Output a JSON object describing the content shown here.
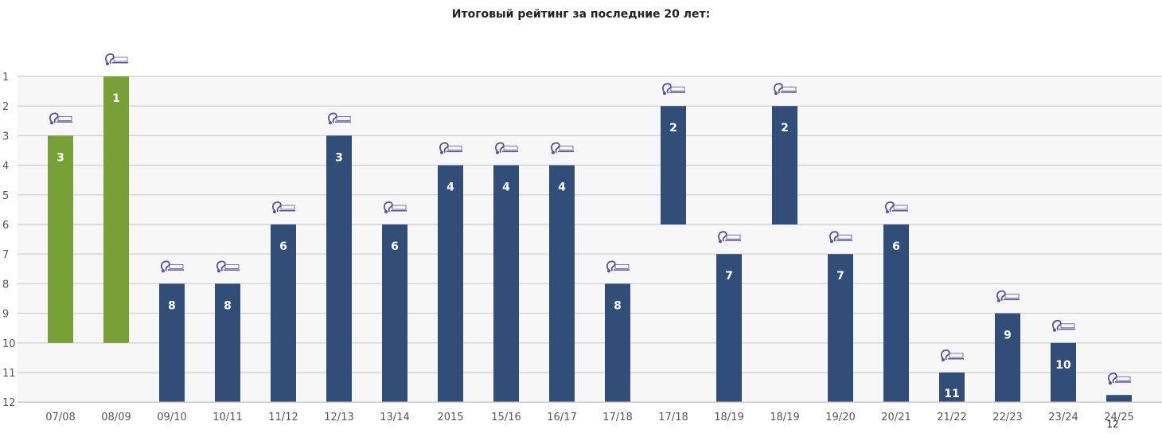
{
  "chart_data": {
    "type": "bar",
    "title": "Итоговый рейтинг за последние 20 лет:",
    "xlabel": "",
    "ylabel": "",
    "ylim": [
      1,
      12
    ],
    "y_inverted": true,
    "y_ticks": [
      "1",
      "2",
      "3",
      "4",
      "5",
      "6",
      "7",
      "8",
      "9",
      "10",
      "11",
      "12"
    ],
    "grid": true,
    "logo_icon": "pinch-logo-icon",
    "colors": {
      "bronze_highlight": "#77a136",
      "default": "#304e78",
      "logo": "#5a4fa0"
    },
    "categories": [
      "07/08",
      "08/09",
      "09/10",
      "10/11",
      "11/12",
      "12/13",
      "13/14",
      "2015",
      "15/16",
      "16/17",
      "17/18",
      "17/18",
      "18/19",
      "18/19",
      "19/20",
      "20/21",
      "21/22",
      "22/23",
      "23/24",
      "24/25"
    ],
    "values": [
      3,
      1,
      8,
      8,
      6,
      3,
      6,
      4,
      4,
      4,
      8,
      2,
      7,
      2,
      7,
      6,
      11,
      9,
      10,
      12
    ],
    "bar_bottoms": [
      10,
      10,
      12,
      12,
      12,
      12,
      12,
      12,
      12,
      12,
      12,
      6,
      12,
      6,
      12,
      12,
      12,
      12,
      12,
      12
    ],
    "bar_colors": [
      "#77a136",
      "#77a136",
      "#304e78",
      "#304e78",
      "#304e78",
      "#304e78",
      "#304e78",
      "#304e78",
      "#304e78",
      "#304e78",
      "#304e78",
      "#304e78",
      "#304e78",
      "#304e78",
      "#304e78",
      "#304e78",
      "#304e78",
      "#304e78",
      "#304e78",
      "#304e78"
    ],
    "labels": [
      "3",
      "1",
      "8",
      "8",
      "6",
      "3",
      "6",
      "4",
      "4",
      "4",
      "8",
      "2",
      "7",
      "2",
      "7",
      "6",
      "11",
      "9",
      "10",
      "12"
    ]
  }
}
